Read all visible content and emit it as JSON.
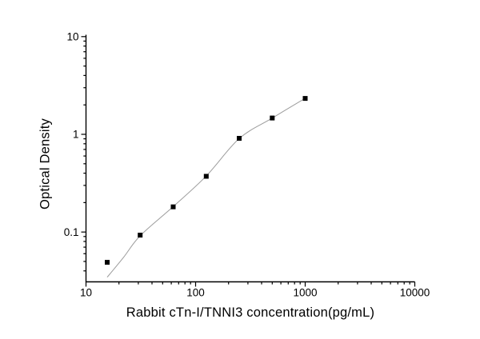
{
  "figure": {
    "background": "#ffffff",
    "axis_color": "#000000",
    "text_color": "#000000"
  },
  "chart_data": {
    "type": "scatter",
    "title": "",
    "xlabel": "Rabbit cTn-I/TNNI3 concentration(pg/mL)",
    "ylabel": "Optical Density",
    "x_scale": "log",
    "y_scale": "log",
    "xlim": [
      10,
      10000
    ],
    "ylim": [
      0.031,
      10
    ],
    "x_ticks": [
      10,
      100,
      1000,
      10000
    ],
    "x_tick_labels": [
      "10",
      "100",
      "1000",
      "10000"
    ],
    "y_ticks": [
      0.1,
      1,
      10
    ],
    "y_tick_labels": [
      "0.1",
      "1",
      "10"
    ],
    "grid": false,
    "legend": null,
    "series": [
      {
        "name": "standard-points",
        "kind": "scatter",
        "marker": "square",
        "marker_size": 6,
        "color": "#000000",
        "points": [
          [
            15.6,
            0.049
          ],
          [
            31.2,
            0.093
          ],
          [
            62.5,
            0.181
          ],
          [
            125,
            0.372
          ],
          [
            250,
            0.91
          ],
          [
            500,
            1.47
          ],
          [
            1000,
            2.33
          ]
        ]
      },
      {
        "name": "fit-curve",
        "kind": "line",
        "color": "#9c9c9c",
        "width": 1,
        "points": [
          [
            15.6,
            0.0345
          ],
          [
            22,
            0.055
          ],
          [
            31.2,
            0.0915
          ],
          [
            62.5,
            0.182
          ],
          [
            125,
            0.375
          ],
          [
            250,
            0.905
          ],
          [
            500,
            1.465
          ],
          [
            1000,
            2.34
          ]
        ]
      }
    ]
  }
}
